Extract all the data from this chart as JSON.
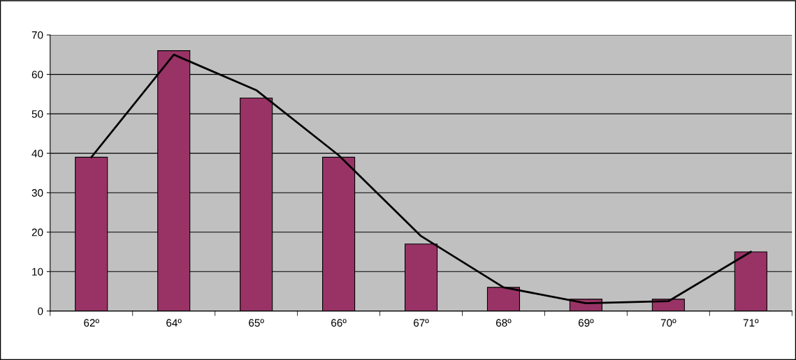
{
  "chart_data": {
    "type": "bar",
    "categories": [
      "62º",
      "64º",
      "65º",
      "66º",
      "67º",
      "68º",
      "69º",
      "70º",
      "71º"
    ],
    "series": [
      {
        "color": "#993366",
        "values": [
          39,
          66,
          54,
          39,
          17,
          6,
          3,
          3,
          15
        ]
      },
      {
        "type": "line",
        "color": "#000000",
        "marker": "none",
        "values": [
          39,
          65,
          56,
          39.5,
          19,
          6,
          2,
          2.5,
          15
        ]
      }
    ],
    "ylim": [
      0,
      70
    ],
    "yticks": [
      0,
      10,
      20,
      30,
      40,
      50,
      60,
      70
    ],
    "grid": "y",
    "legend": false
  }
}
